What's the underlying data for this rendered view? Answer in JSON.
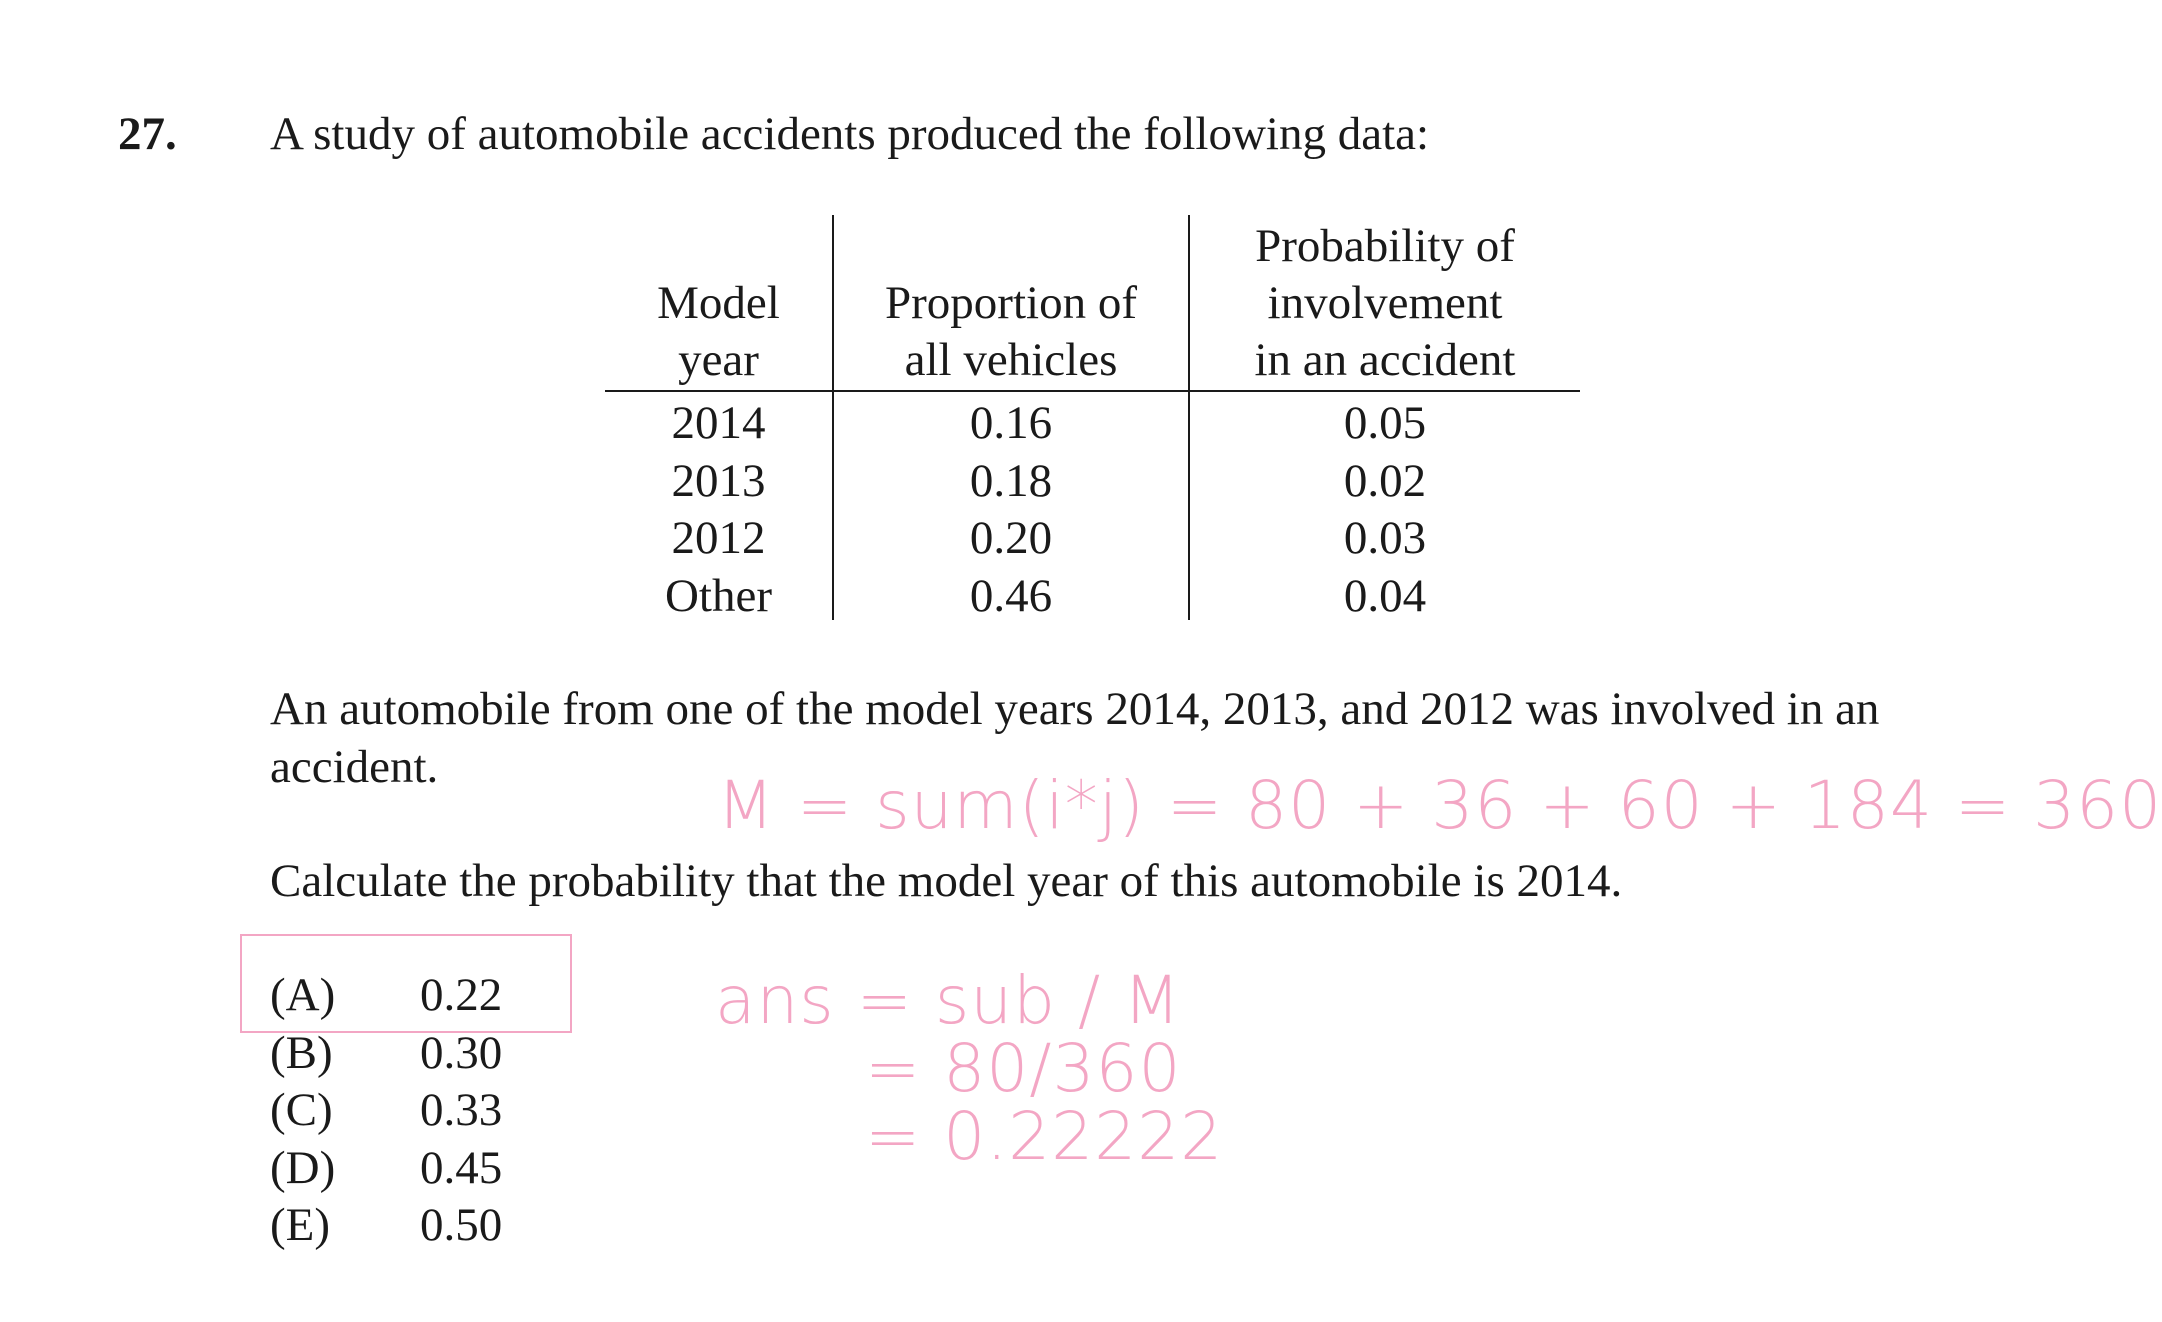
{
  "question": {
    "number": "27.",
    "intro": "A study of automobile accidents produced the following data:"
  },
  "table": {
    "headers": {
      "model_year": [
        "Model",
        "year"
      ],
      "proportion": [
        "Proportion of",
        "all vehicles"
      ],
      "probability": [
        "Probability of",
        "involvement",
        "in an accident"
      ]
    },
    "rows": [
      {
        "year": "2014",
        "proportion": "0.16",
        "probability": "0.05"
      },
      {
        "year": "2013",
        "proportion": "0.18",
        "probability": "0.02"
      },
      {
        "year": "2012",
        "proportion": "0.20",
        "probability": "0.03"
      },
      {
        "year": "Other",
        "proportion": "0.46",
        "probability": "0.04"
      }
    ]
  },
  "paragraph1": "An automobile from one of the model years 2014, 2013, and 2012 was involved in an accident.",
  "paragraph2": "Calculate the probability that the model year of this automobile is 2014.",
  "handwritten": {
    "formula": "M = sum(i*j) =  80 + 36 + 60 +  184 = 360",
    "ans_line1": "ans  =  sub / M",
    "ans_line2": "= 80/360",
    "ans_line3": "= 0.22222",
    "color": "#f3a6c4"
  },
  "choices": [
    {
      "letter": "(A)",
      "value": "0.22"
    },
    {
      "letter": "(B)",
      "value": "0.30"
    },
    {
      "letter": "(C)",
      "value": "0.33"
    },
    {
      "letter": "(D)",
      "value": "0.45"
    },
    {
      "letter": "(E)",
      "value": "0.50"
    }
  ]
}
